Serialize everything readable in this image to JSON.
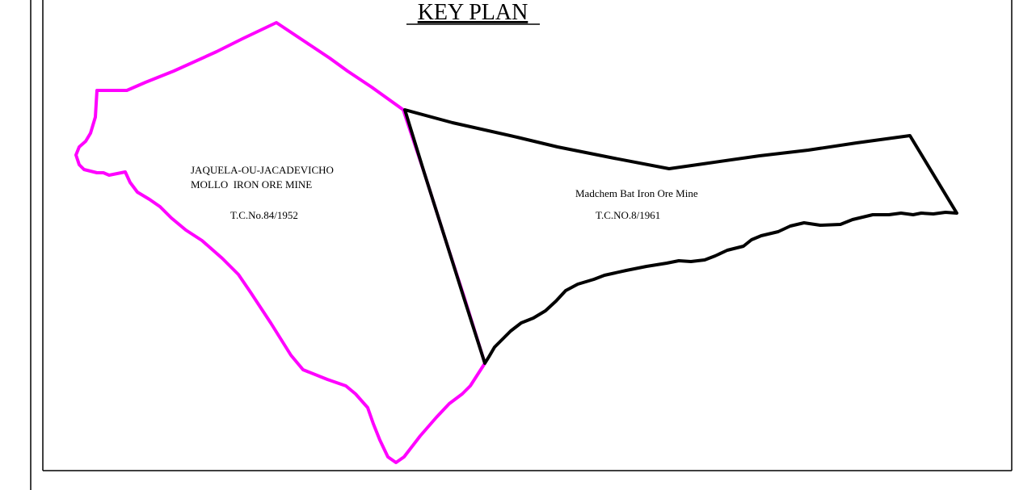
{
  "title": "KEY PLAN",
  "areas": {
    "jaquela": {
      "name_line1": "JAQUELA-OU-JACADEVICHO",
      "name_line2": "MOLLO  IRON ORE MINE",
      "tc_number": "T.C.No.84/1952",
      "boundary_color": "#ff00ff"
    },
    "madchem": {
      "name": "Madchem Bat Iron Ore Mine",
      "tc_number": "T.C.NO.8/1961",
      "boundary_color": "#000000"
    }
  },
  "colors": {
    "frame": "#000000",
    "background": "#ffffff"
  }
}
